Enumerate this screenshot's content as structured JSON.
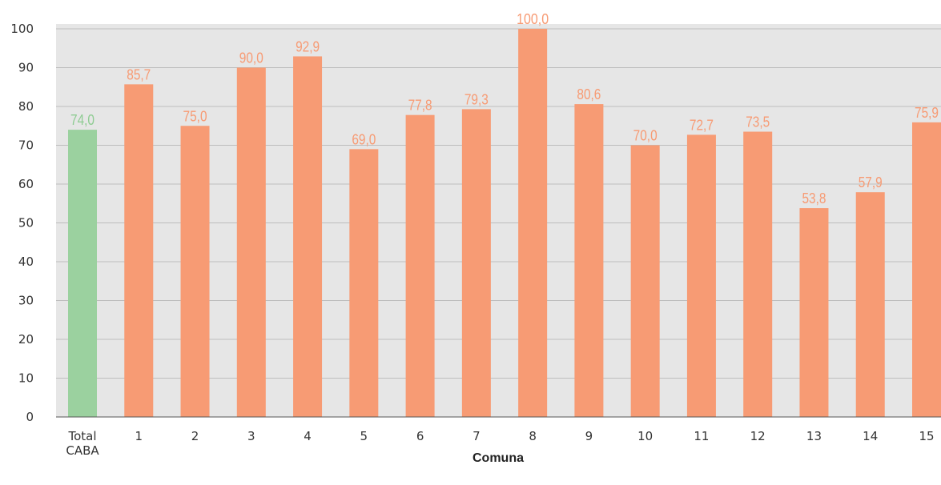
{
  "chart_data": {
    "type": "bar",
    "title": "",
    "xlabel": "Comuna",
    "ylabel": "",
    "ylim": [
      0,
      100
    ],
    "yticks": [
      0,
      10,
      20,
      30,
      40,
      50,
      60,
      70,
      80,
      90,
      100
    ],
    "grid": true,
    "categories": [
      [
        "Total",
        "CABA"
      ],
      [
        "1"
      ],
      [
        "2"
      ],
      [
        "3"
      ],
      [
        "4"
      ],
      [
        "5"
      ],
      [
        "6"
      ],
      [
        "7"
      ],
      [
        "8"
      ],
      [
        "9"
      ],
      [
        "10"
      ],
      [
        "11"
      ],
      [
        "12"
      ],
      [
        "13"
      ],
      [
        "14"
      ],
      [
        "15"
      ]
    ],
    "values": [
      74.0,
      85.7,
      75.0,
      90.0,
      92.9,
      69.0,
      77.8,
      79.3,
      100.0,
      80.6,
      70.0,
      72.7,
      73.5,
      53.8,
      57.9,
      75.9
    ],
    "value_labels": [
      "74,0",
      "85,7",
      "75,0",
      "90,0",
      "92,9",
      "69,0",
      "77,8",
      "79,3",
      "100,0",
      "80,6",
      "70,0",
      "72,7",
      "73,5",
      "53,8",
      "57,9",
      "75,9"
    ],
    "colors": {
      "highlight": "#9bd19f",
      "highlight_label": "#8fcc93",
      "bar": "#f79b74",
      "bar_label": "#f79b74",
      "plot_background": "#e6e6e6",
      "gridline": "#bdbdbd",
      "axis": "#555555"
    },
    "highlight_index": 0
  }
}
